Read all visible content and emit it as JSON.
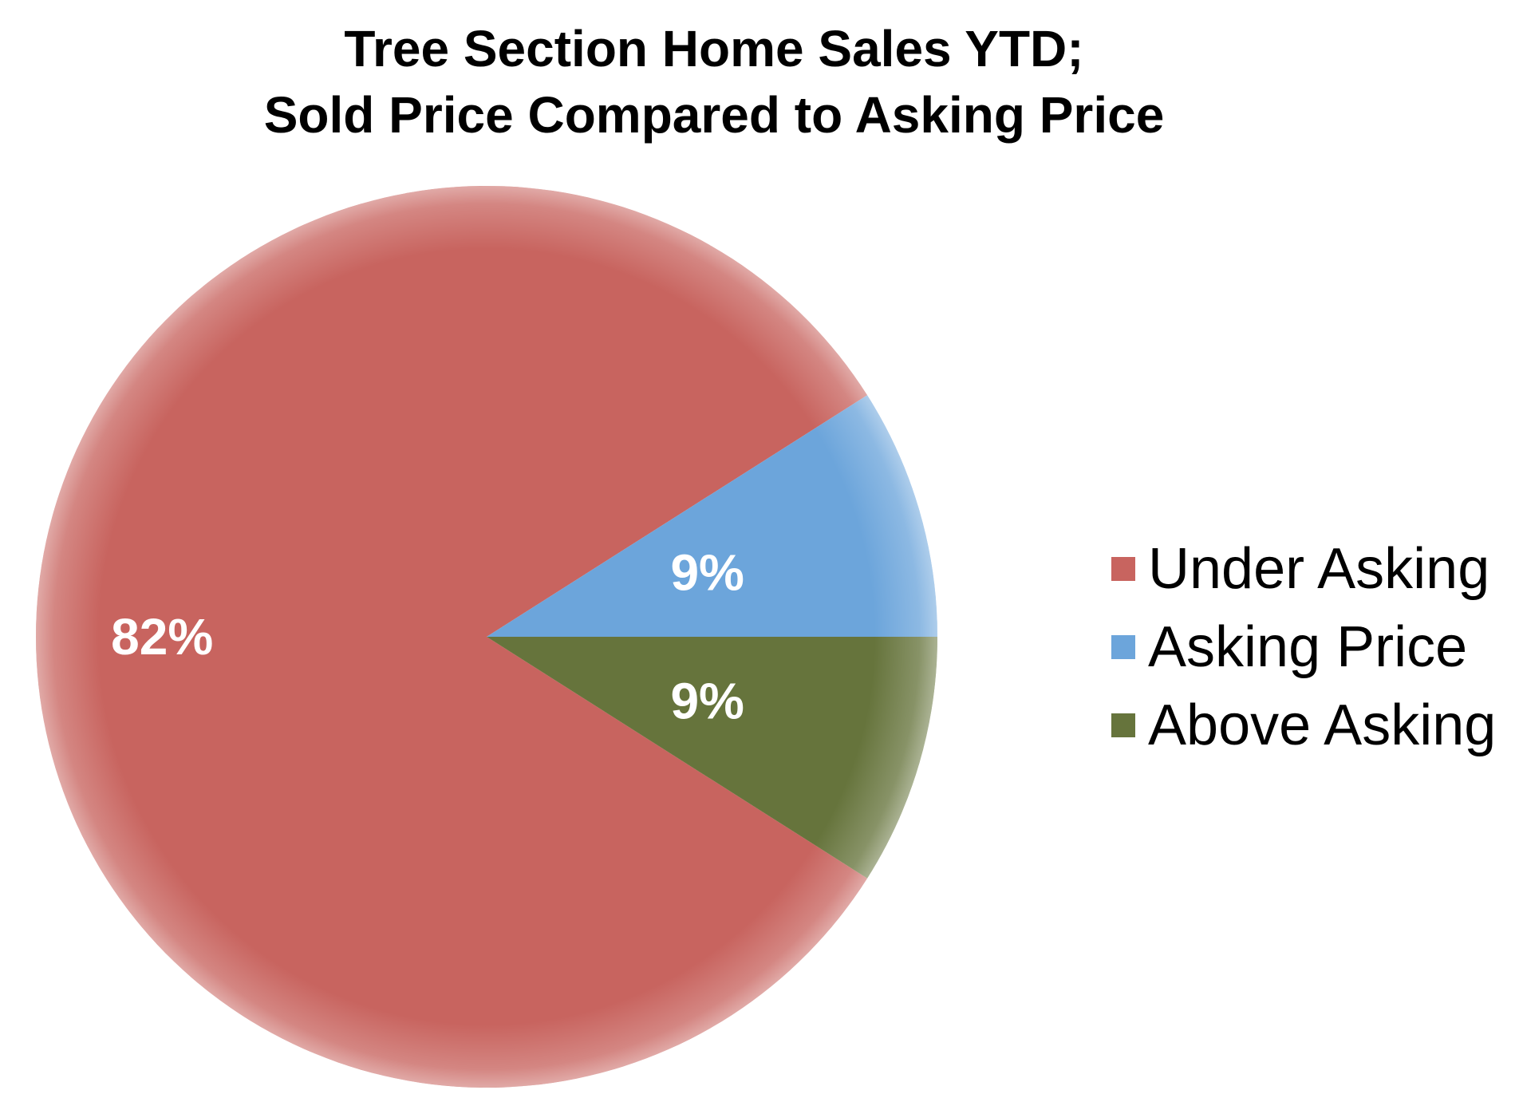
{
  "chart_data": {
    "type": "pie",
    "title_lines": [
      "Tree Section Home Sales YTD;",
      "Sold Price Compared to Asking Price"
    ],
    "slices": [
      {
        "label": "Under Asking",
        "value": 82,
        "display": "82%",
        "color": "#C8645F"
      },
      {
        "label": "Asking Price",
        "value": 9,
        "display": "9%",
        "color": "#6CA5DB"
      },
      {
        "label": "Above Asking",
        "value": 9,
        "display": "9%",
        "color": "#66743C"
      }
    ],
    "legend_position": "right",
    "data_label_color": "#FFFFFF"
  }
}
